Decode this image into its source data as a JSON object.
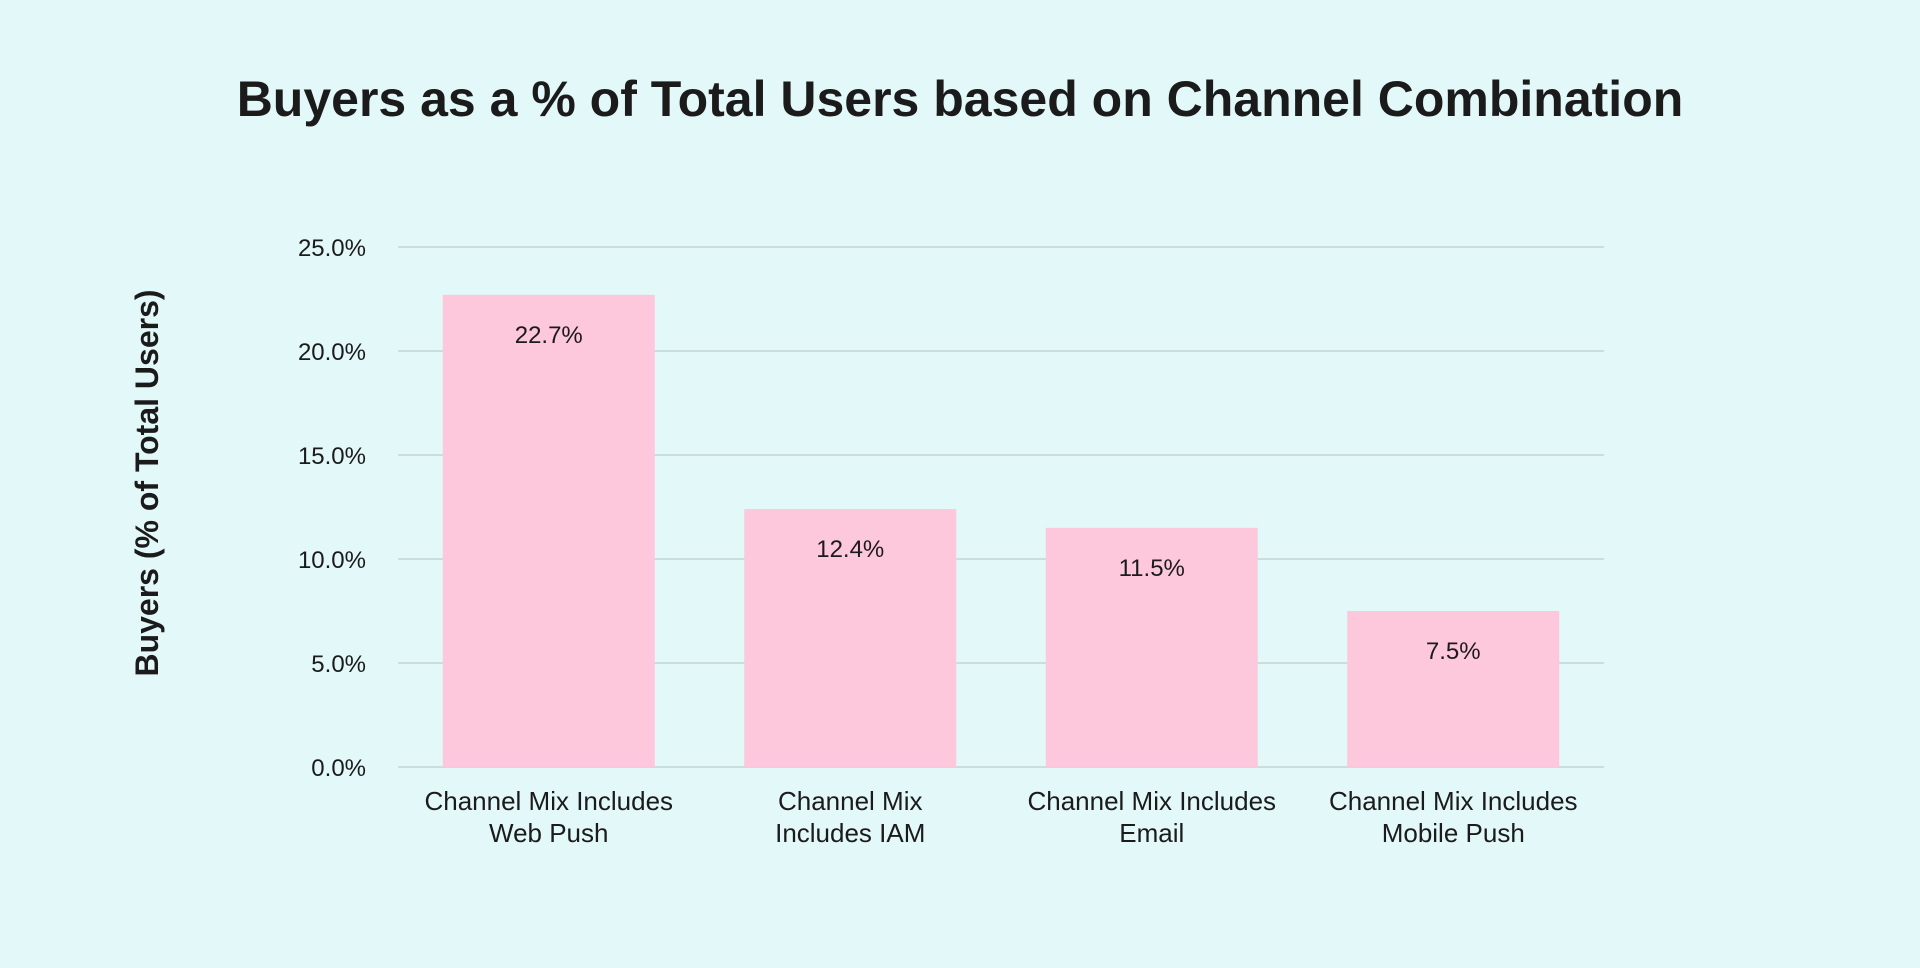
{
  "colors": {
    "background": "#e3f8f9",
    "bar": "#fdc7dc",
    "grid": "#c4d4d5",
    "text": "#1b1b1b"
  },
  "chart_data": {
    "type": "bar",
    "title": "Buyers as a % of Total Users based on Channel Combination",
    "xlabel": "",
    "ylabel": "Buyers (% of Total Users)",
    "ylim": [
      0,
      25
    ],
    "grid": true,
    "y_ticks": [
      {
        "value": 0,
        "label": "0.0%"
      },
      {
        "value": 5,
        "label": "5.0%"
      },
      {
        "value": 10,
        "label": "10.0%"
      },
      {
        "value": 15,
        "label": "15.0%"
      },
      {
        "value": 20,
        "label": "20.0%"
      },
      {
        "value": 25,
        "label": "25.0%"
      }
    ],
    "categories": [
      [
        "Channel Mix Includes",
        "Web Push"
      ],
      [
        "Channel Mix",
        "Includes IAM"
      ],
      [
        "Channel Mix Includes",
        "Email"
      ],
      [
        "Channel Mix Includes",
        "Mobile Push"
      ]
    ],
    "values": [
      22.7,
      12.4,
      11.5,
      7.5
    ],
    "data_labels": [
      "22.7%",
      "12.4%",
      "11.5%",
      "7.5%"
    ]
  }
}
